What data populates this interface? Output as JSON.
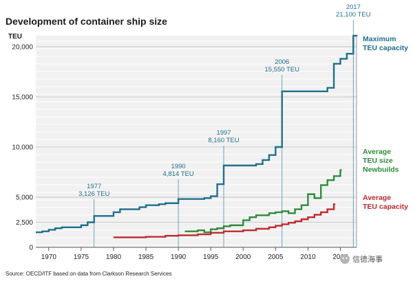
{
  "chart_data": {
    "type": "line",
    "title": "Development of container ship size",
    "ylabel": "TEU",
    "xlabel": "",
    "xlim": [
      1968,
      2017.5
    ],
    "ylim": [
      0,
      21000
    ],
    "grid": true,
    "x_ticks": [
      "1970",
      "1975",
      "1980",
      "1985",
      "1990",
      "1995",
      "2000",
      "2005",
      "2010",
      "2015"
    ],
    "y_ticks": [
      "0",
      "2,500",
      "5,000",
      "10,000",
      "15,000",
      "20,000"
    ],
    "series": [
      {
        "name": "Maximum TEU capacity",
        "color": "#1f6e8c",
        "step": true,
        "x": [
          1968,
          1969,
          1970,
          1971,
          1972,
          1975,
          1976,
          1977,
          1980,
          1981,
          1984,
          1985,
          1987,
          1988,
          1990,
          1994,
          1995,
          1996,
          1997,
          2002,
          2003,
          2004,
          2005,
          2006,
          2013,
          2014,
          2015,
          2016,
          2017
        ],
        "y": [
          1500,
          1600,
          1750,
          1900,
          2000,
          2200,
          2500,
          3126,
          3500,
          3800,
          4000,
          4200,
          4300,
          4400,
          4814,
          4900,
          5100,
          6300,
          8160,
          8300,
          8700,
          9200,
          10000,
          15550,
          15900,
          18300,
          18800,
          19300,
          21100
        ]
      },
      {
        "name": "Average TEU size Newbuilds",
        "color": "#2e8b3a",
        "step": true,
        "x": [
          1991,
          1993,
          1994,
          1995,
          1996,
          1997,
          1998,
          2000,
          2001,
          2002,
          2004,
          2005,
          2006,
          2007,
          2008,
          2009,
          2010,
          2011,
          2012,
          2013,
          2014,
          2015
        ],
        "y": [
          1600,
          1700,
          1500,
          1800,
          1900,
          2100,
          2200,
          2700,
          3000,
          3200,
          3400,
          3500,
          3600,
          3400,
          3800,
          4200,
          5300,
          4900,
          6200,
          6700,
          7100,
          7700
        ]
      },
      {
        "name": "Average TEU capacity",
        "color": "#c0282d",
        "step": true,
        "x": [
          1980,
          1985,
          1988,
          1990,
          1993,
          1995,
          1997,
          2000,
          2002,
          2004,
          2005,
          2006,
          2007,
          2008,
          2009,
          2010,
          2011,
          2012,
          2013,
          2014
        ],
        "y": [
          1000,
          1050,
          1150,
          1200,
          1300,
          1450,
          1600,
          1700,
          1850,
          2000,
          2150,
          2300,
          2450,
          2600,
          2800,
          3000,
          3250,
          3500,
          3800,
          4300
        ]
      }
    ],
    "annotations": [
      {
        "x": 1977,
        "y": 3126,
        "year": "1977",
        "value": "3,126 TEU"
      },
      {
        "x": 1990,
        "y": 4814,
        "year": "1990",
        "value": "4,814 TEU"
      },
      {
        "x": 1997,
        "y": 8160,
        "year": "1997",
        "value": "8,160 TEU"
      },
      {
        "x": 2006,
        "y": 15550,
        "year": "2006",
        "value": "15,550 TEU"
      },
      {
        "x": 2017,
        "y": 21100,
        "year": "2017",
        "value": "21,100 TEU"
      }
    ],
    "legend_labels": [
      {
        "series": 0,
        "lines": [
          "Maximum",
          "TEU capacity"
        ]
      },
      {
        "series": 1,
        "lines": [
          "Average",
          "TEU size",
          "Newbuilds"
        ]
      },
      {
        "series": 2,
        "lines": [
          "Average",
          "TEU capacity"
        ]
      }
    ],
    "source": "Source: OECD/ITF based on data from Clarkson Research Services"
  },
  "watermark": "信德海事"
}
